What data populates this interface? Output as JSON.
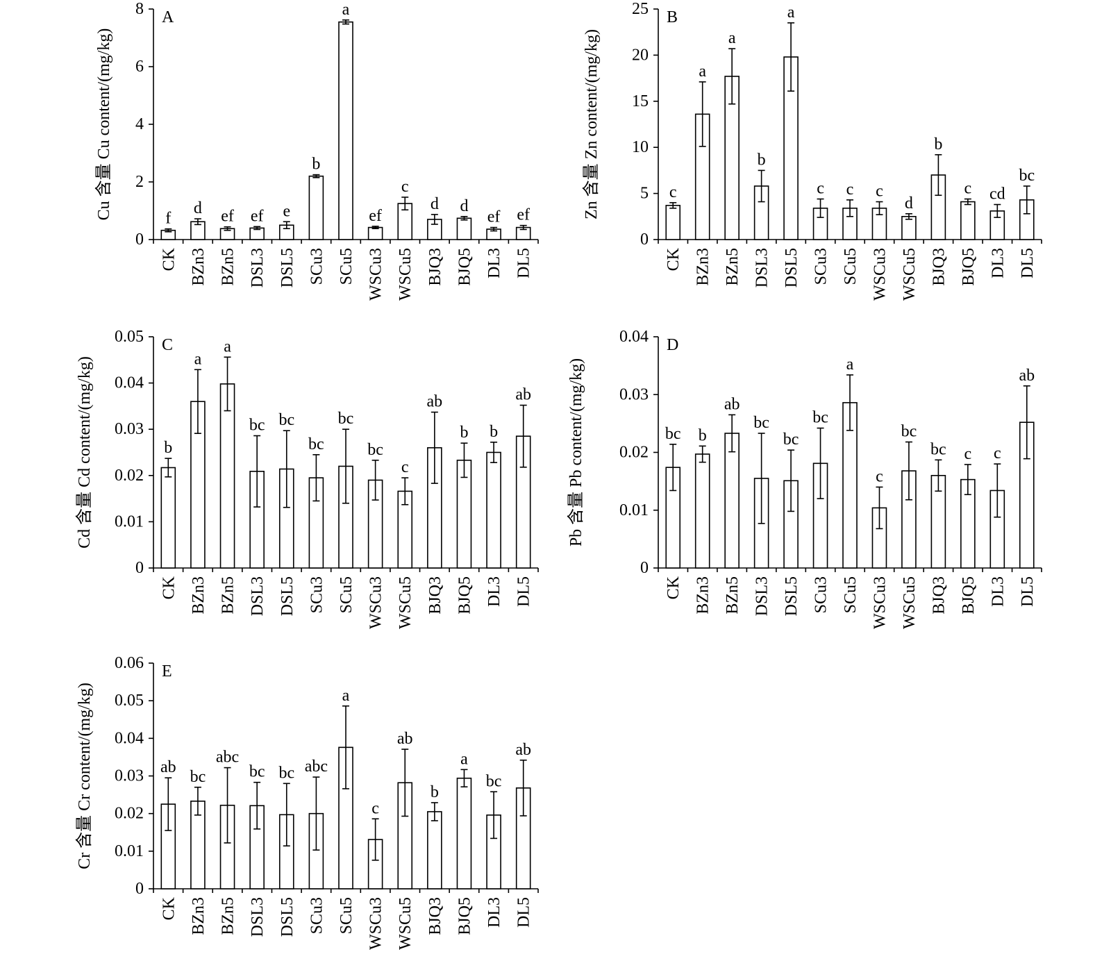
{
  "chart_data": [
    {
      "label": "A",
      "type": "bar",
      "ylabel": "Cu 含量 Cu content/(mg/kg)",
      "ylim": [
        0,
        8
      ],
      "yticks": [
        0,
        2,
        4,
        6,
        8
      ],
      "categories": [
        "CK",
        "BZn3",
        "BZn5",
        "DSL3",
        "DSL5",
        "SCu3",
        "SCu5",
        "WSCu3",
        "WSCu5",
        "BJQ3",
        "BJQ5",
        "DL3",
        "DL5"
      ],
      "values": [
        0.32,
        0.62,
        0.38,
        0.4,
        0.5,
        2.2,
        7.55,
        0.42,
        1.25,
        0.7,
        0.74,
        0.36,
        0.42
      ],
      "errors": [
        0.05,
        0.1,
        0.06,
        0.05,
        0.12,
        0.05,
        0.07,
        0.04,
        0.22,
        0.17,
        0.06,
        0.06,
        0.07
      ],
      "letters": [
        "f",
        "d",
        "ef",
        "ef",
        "e",
        "b",
        "a",
        "ef",
        "c",
        "d",
        "d",
        "ef",
        "ef"
      ]
    },
    {
      "label": "B",
      "type": "bar",
      "ylabel": "Zn 含量 Zn content/(mg/kg)",
      "ylim": [
        0,
        25
      ],
      "yticks": [
        0,
        5,
        10,
        15,
        20,
        25
      ],
      "categories": [
        "CK",
        "BZn3",
        "BZn5",
        "DSL3",
        "DSL5",
        "SCu3",
        "SCu5",
        "WSCu3",
        "WSCu5",
        "BJQ3",
        "BJQ5",
        "DL3",
        "DL5"
      ],
      "values": [
        3.7,
        13.6,
        17.7,
        5.8,
        19.8,
        3.4,
        3.4,
        3.4,
        2.5,
        7.0,
        4.1,
        3.1,
        4.3
      ],
      "errors": [
        0.3,
        3.5,
        3.0,
        1.7,
        3.7,
        1.0,
        0.9,
        0.7,
        0.3,
        2.2,
        0.3,
        0.7,
        1.5
      ],
      "letters": [
        "c",
        "a",
        "a",
        "b",
        "a",
        "c",
        "c",
        "c",
        "d",
        "b",
        "c",
        "cd",
        "bc"
      ]
    },
    {
      "label": "C",
      "type": "bar",
      "ylabel": "Cd 含量 Cd content/(mg/kg)",
      "ylim": [
        0,
        0.05
      ],
      "yticks": [
        0,
        0.01,
        0.02,
        0.03,
        0.04,
        0.05
      ],
      "categories": [
        "CK",
        "BZn3",
        "BZn5",
        "DSL3",
        "DSL5",
        "SCu3",
        "SCu5",
        "WSCu3",
        "WSCu5",
        "BJQ3",
        "BJQ5",
        "DL3",
        "DL5"
      ],
      "values": [
        0.0217,
        0.036,
        0.0398,
        0.0209,
        0.0214,
        0.0195,
        0.022,
        0.019,
        0.0166,
        0.026,
        0.0233,
        0.025,
        0.0285
      ],
      "errors": [
        0.002,
        0.0069,
        0.0058,
        0.0077,
        0.0083,
        0.005,
        0.008,
        0.0043,
        0.0029,
        0.0077,
        0.0037,
        0.0022,
        0.0067
      ],
      "letters": [
        "b",
        "a",
        "a",
        "bc",
        "bc",
        "bc",
        "bc",
        "bc",
        "c",
        "ab",
        "b",
        "b",
        "ab"
      ]
    },
    {
      "label": "D",
      "type": "bar",
      "ylabel": "Pb 含量 Pb content/(mg/kg)",
      "ylim": [
        0,
        0.04
      ],
      "yticks": [
        0,
        0.01,
        0.02,
        0.03,
        0.04
      ],
      "categories": [
        "CK",
        "BZn3",
        "BZn5",
        "DSL3",
        "DSL5",
        "SCu3",
        "SCu5",
        "WSCu3",
        "WSCu5",
        "BJQ3",
        "BJQ5",
        "DL3",
        "DL5"
      ],
      "values": [
        0.0174,
        0.0197,
        0.0233,
        0.0155,
        0.0151,
        0.0181,
        0.0286,
        0.0104,
        0.0168,
        0.016,
        0.0153,
        0.0134,
        0.0252
      ],
      "errors": [
        0.004,
        0.0014,
        0.0032,
        0.0078,
        0.0053,
        0.0061,
        0.0048,
        0.0036,
        0.005,
        0.0027,
        0.0026,
        0.0046,
        0.0063
      ],
      "letters": [
        "bc",
        "b",
        "ab",
        "bc",
        "bc",
        "bc",
        "a",
        "c",
        "bc",
        "bc",
        "c",
        "c",
        "ab"
      ]
    },
    {
      "label": "E",
      "type": "bar",
      "ylabel": "Cr 含量 Cr content/(mg/kg)",
      "ylim": [
        0,
        0.06
      ],
      "yticks": [
        0,
        0.01,
        0.02,
        0.03,
        0.04,
        0.05,
        0.06
      ],
      "categories": [
        "CK",
        "BZn3",
        "BZn5",
        "DSL3",
        "DSL5",
        "SCu3",
        "SCu5",
        "WSCu3",
        "WSCu5",
        "BJQ3",
        "BJQ5",
        "DL3",
        "DL5"
      ],
      "values": [
        0.0225,
        0.0233,
        0.0222,
        0.0221,
        0.0197,
        0.02,
        0.0376,
        0.0131,
        0.0282,
        0.0205,
        0.0294,
        0.0196,
        0.0268
      ],
      "errors": [
        0.007,
        0.0037,
        0.01,
        0.0062,
        0.0083,
        0.0097,
        0.011,
        0.0055,
        0.0089,
        0.0024,
        0.0023,
        0.0062,
        0.0074
      ],
      "letters": [
        "ab",
        "bc",
        "abc",
        "bc",
        "bc",
        "abc",
        "a",
        "c",
        "ab",
        "b",
        "a",
        "bc",
        "ab"
      ]
    }
  ]
}
